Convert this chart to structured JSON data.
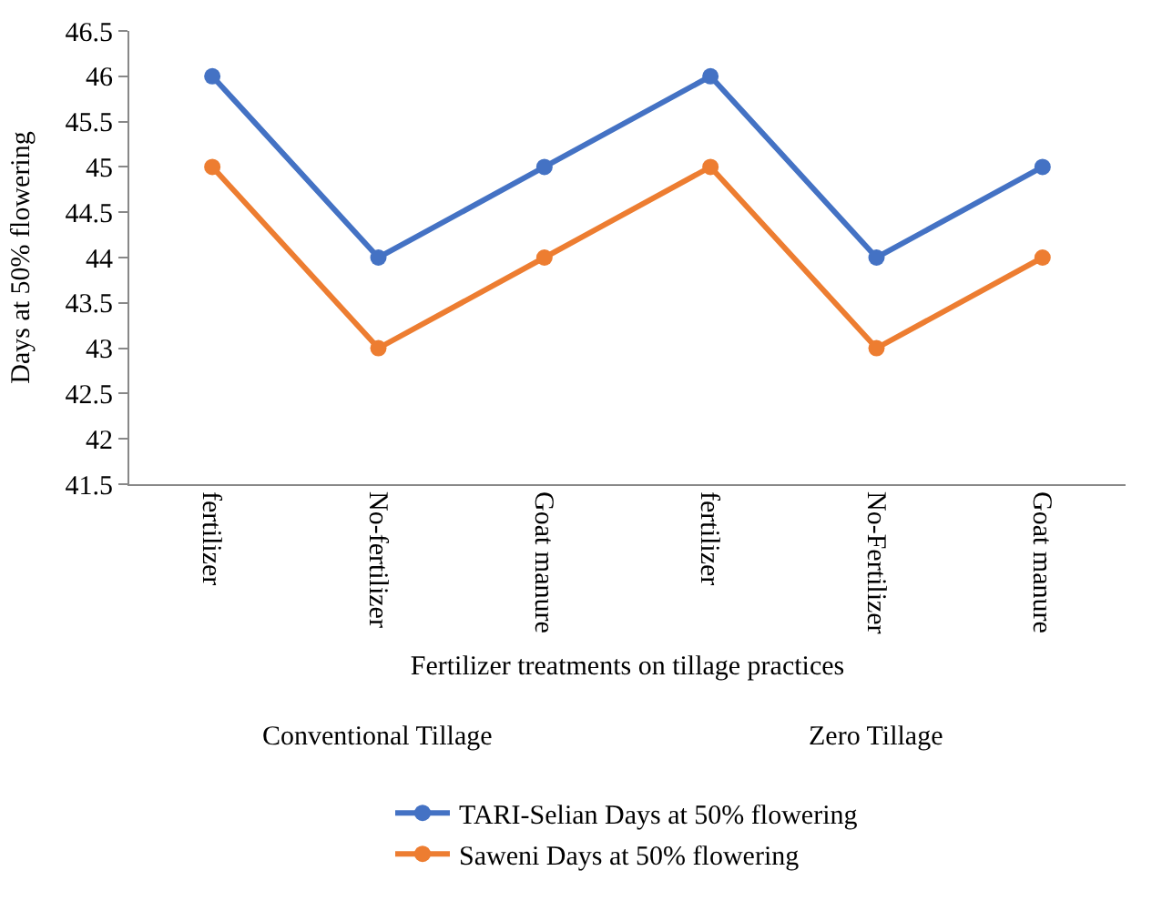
{
  "chart_data": {
    "type": "line",
    "ylabel": "Days at 50% flowering",
    "xlabel": "Fertilizer treatments on tillage practices",
    "categories": [
      "fertilizer",
      "No-fertilizer",
      "Goat manure",
      "fertilizer",
      "No-Fertilizer",
      "Goat manure"
    ],
    "series": [
      {
        "name": "TARI-Selian Days at 50% flowering",
        "color": "#4472c4",
        "values": [
          46,
          44,
          45,
          46,
          44,
          45
        ]
      },
      {
        "name": "Saweni Days at 50% flowering",
        "color": "#ed7d31",
        "values": [
          45,
          43,
          44,
          45,
          43,
          44
        ]
      }
    ],
    "annotations": [
      "Conventional Tillage",
      "Zero Tillage"
    ],
    "ylim": [
      41.5,
      46.5
    ],
    "yticks": [
      41.5,
      42,
      42.5,
      43,
      43.5,
      44,
      44.5,
      45,
      45.5,
      46,
      46.5
    ],
    "legend": "bottom",
    "marker": "circle",
    "line_style": "solid"
  }
}
